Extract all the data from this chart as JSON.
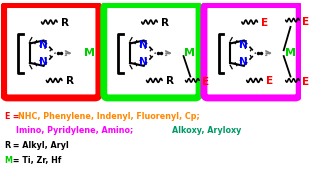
{
  "bg_color": "#ffffff",
  "box1_color": "#ff0000",
  "box2_color": "#00ee00",
  "box3_color": "#ff00ff",
  "N_color": "#0000ff",
  "M_color": "#00cc00",
  "R_color": "#000000",
  "E_color": "#ff0000",
  "orange_color": "#ff8800",
  "magenta_color": "#ff00ff",
  "teal_color": "#009966",
  "text1_e": "E",
  "text1_eq": " = ",
  "text1_orange": "NHC, Phenylene, Indenyl, Fluorenyl, Cp;",
  "text2_magenta": "   Imino, Pyridylene, Amino;",
  "text2_teal": " Alkoxy, Aryloxy",
  "text3": "R = Alkyl, Aryl",
  "text4": " = Ti, Zr, Hf"
}
